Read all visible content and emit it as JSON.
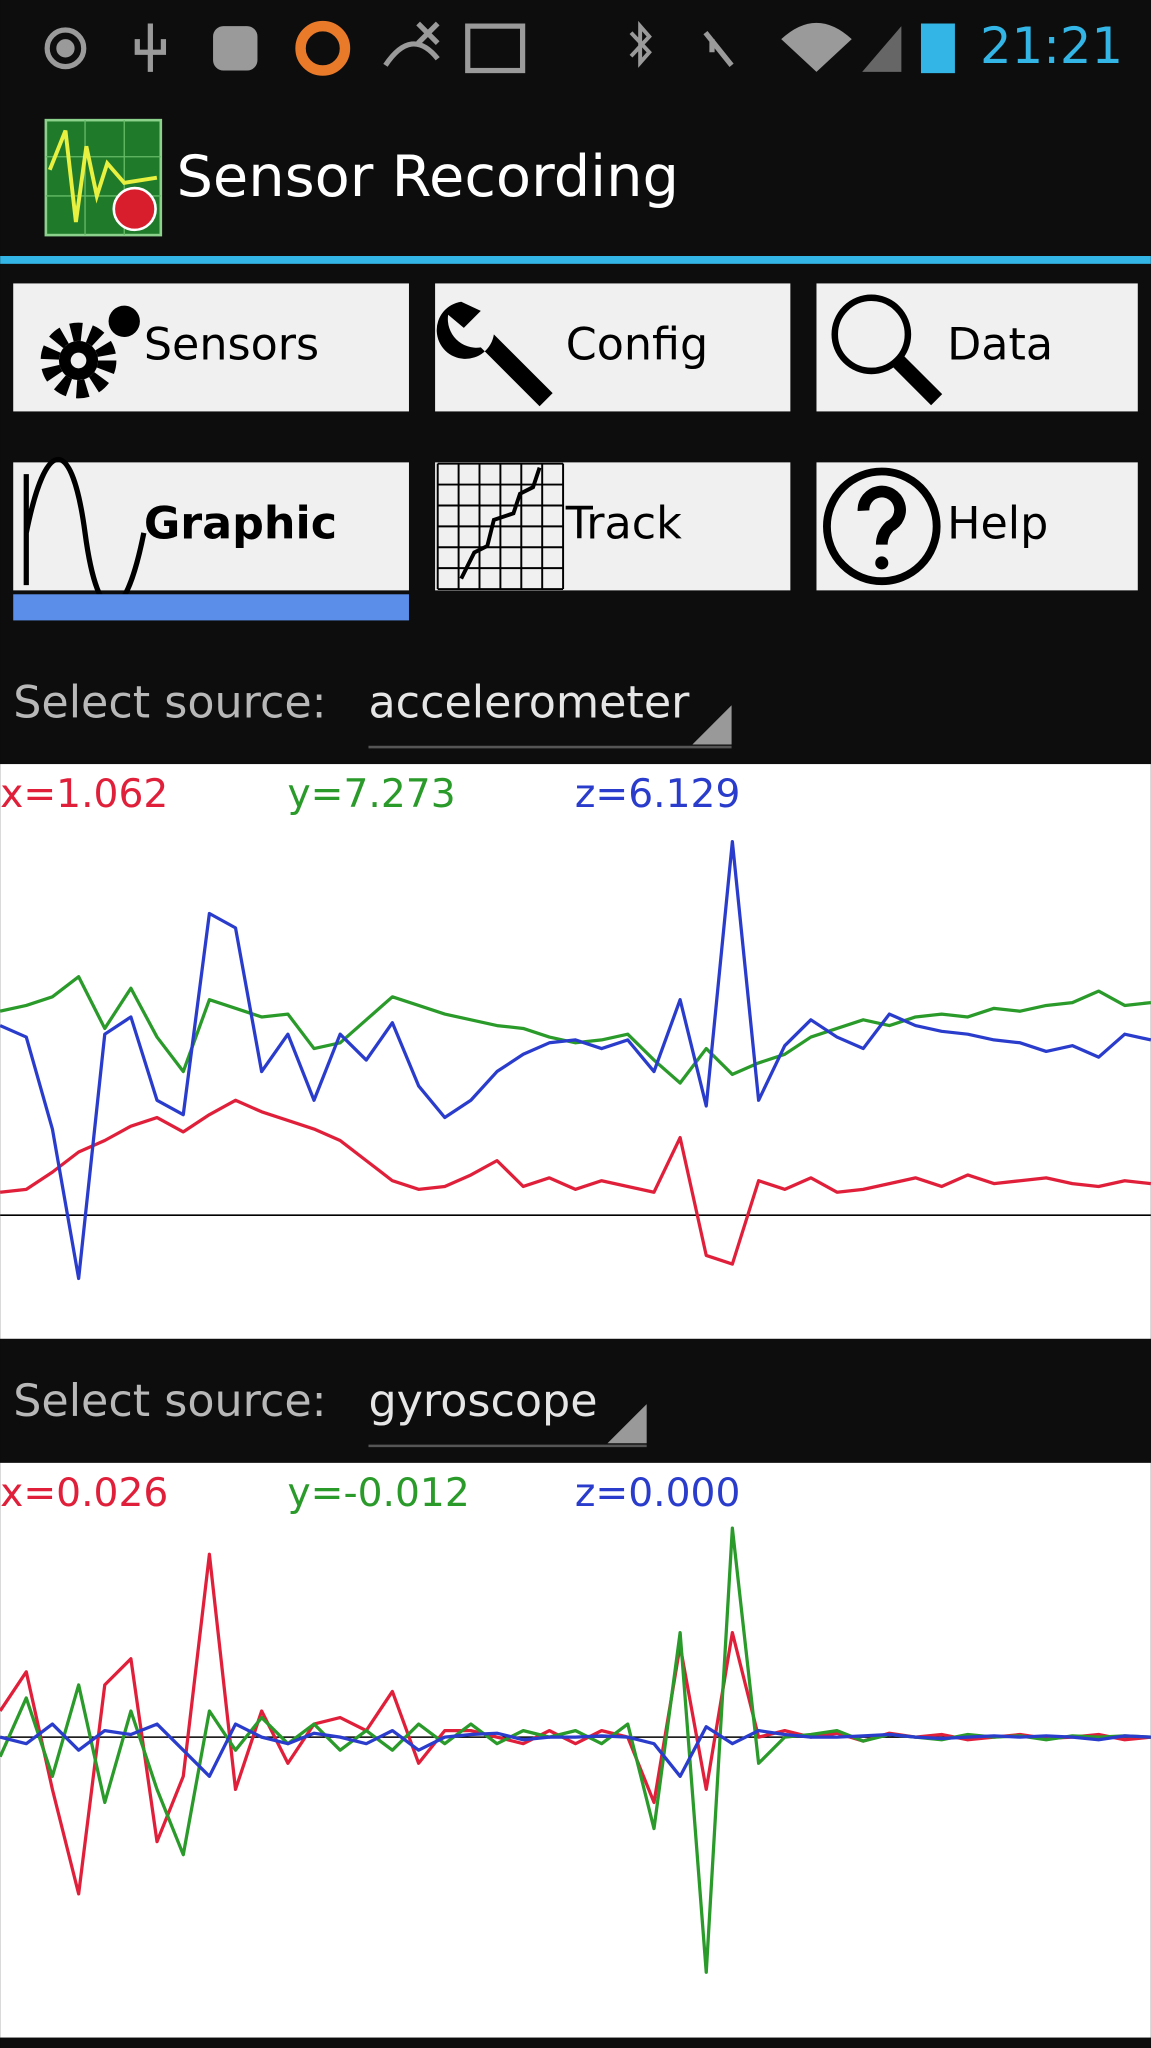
{
  "status_bar": {
    "time": "21:21"
  },
  "app_bar": {
    "title": "Sensor Recording"
  },
  "buttons": [
    {
      "label": "Sensors",
      "selected": false
    },
    {
      "label": "Config",
      "selected": false
    },
    {
      "label": "Data",
      "selected": false
    },
    {
      "label": "Graphic",
      "selected": true
    },
    {
      "label": "Track",
      "selected": false
    },
    {
      "label": "Help",
      "selected": false
    }
  ],
  "sources": [
    {
      "prompt": "Select source:",
      "value": "accelerometer"
    },
    {
      "prompt": "Select source:",
      "value": "gyroscope"
    }
  ],
  "chart_data": [
    {
      "type": "line",
      "readouts": [
        "x=1.062",
        "y=7.273",
        "z=6.129"
      ],
      "ylim": [
        -4.3,
        15.7
      ],
      "series": [
        {
          "color": "#e0203a",
          "values": [
            0.8,
            0.9,
            1.5,
            2.2,
            2.6,
            3.1,
            3.4,
            2.9,
            3.5,
            4.0,
            3.6,
            3.3,
            3.0,
            2.6,
            1.9,
            1.2,
            0.9,
            1.0,
            1.4,
            1.9,
            1.0,
            1.3,
            0.9,
            1.2,
            1.0,
            0.8,
            2.7,
            -1.4,
            -1.7,
            1.2,
            0.9,
            1.3,
            0.8,
            0.9,
            1.1,
            1.3,
            1.0,
            1.4,
            1.1,
            1.2,
            1.3,
            1.1,
            1.0,
            1.2,
            1.1
          ]
        },
        {
          "color": "#2a9a2a",
          "values": [
            7.1,
            7.3,
            7.6,
            8.3,
            6.5,
            7.9,
            6.2,
            5.0,
            7.5,
            7.2,
            6.9,
            7.0,
            5.8,
            6.0,
            6.8,
            7.6,
            7.3,
            7.0,
            6.8,
            6.6,
            6.5,
            6.2,
            6.0,
            6.1,
            6.3,
            5.4,
            4.6,
            5.8,
            4.9,
            5.3,
            5.6,
            6.2,
            6.5,
            6.8,
            6.6,
            6.9,
            7.0,
            6.9,
            7.2,
            7.1,
            7.3,
            7.4,
            7.8,
            7.3,
            7.4
          ]
        },
        {
          "color": "#2a3ccc",
          "values": [
            6.6,
            6.2,
            3.0,
            -2.2,
            6.3,
            6.9,
            4.0,
            3.5,
            10.5,
            10.0,
            5.0,
            6.3,
            4.0,
            6.3,
            5.4,
            6.7,
            4.5,
            3.4,
            4.0,
            5.0,
            5.6,
            6.0,
            6.1,
            5.8,
            6.1,
            5.0,
            7.5,
            3.8,
            13.0,
            4.0,
            5.9,
            6.8,
            6.2,
            5.8,
            7.0,
            6.6,
            6.4,
            6.3,
            6.1,
            6.0,
            5.7,
            5.9,
            5.5,
            6.3,
            6.1
          ]
        }
      ]
    },
    {
      "type": "line",
      "readouts": [
        "x=0.026",
        "y=-0.012",
        "z=0.000"
      ],
      "ylim": [
        -2.3,
        2.1
      ],
      "series": [
        {
          "color": "#e0203a",
          "values": [
            0.2,
            0.5,
            -0.4,
            -1.2,
            0.4,
            0.6,
            -0.8,
            -0.3,
            1.4,
            -0.4,
            0.2,
            -0.2,
            0.1,
            0.15,
            0.05,
            0.35,
            -0.2,
            0.05,
            0.05,
            0,
            -0.05,
            0.05,
            -0.05,
            0.05,
            0,
            -0.5,
            0.7,
            -0.4,
            0.8,
            0,
            0.05,
            0,
            0.03,
            -0.03,
            0.03,
            0,
            0.02,
            -0.02,
            0,
            0.02,
            -0.01,
            0,
            0.02,
            -0.02,
            0
          ]
        },
        {
          "color": "#2a9a2a",
          "values": [
            -0.15,
            0.3,
            -0.3,
            0.4,
            -0.5,
            0.2,
            -0.4,
            -0.9,
            0.2,
            -0.1,
            0.15,
            -0.05,
            0.1,
            -0.1,
            0.05,
            -0.1,
            0.1,
            -0.05,
            0.1,
            -0.05,
            0.05,
            0,
            0.05,
            -0.05,
            0.1,
            -0.7,
            0.8,
            -1.8,
            1.6,
            -0.2,
            0,
            0.02,
            0.05,
            -0.03,
            0.02,
            0,
            -0.02,
            0.02,
            0,
            0.01,
            -0.02,
            0.01,
            0,
            0.01,
            0
          ]
        },
        {
          "color": "#2a3ccc",
          "values": [
            0,
            -0.05,
            0.1,
            -0.1,
            0.05,
            0.02,
            0.1,
            -0.1,
            -0.3,
            0.1,
            0,
            -0.05,
            0.03,
            0,
            -0.05,
            0.05,
            -0.1,
            0,
            0.02,
            0.03,
            -0.02,
            0,
            0,
            0.01,
            0,
            -0.05,
            -0.3,
            0.08,
            -0.05,
            0.05,
            0.02,
            0,
            0,
            0.01,
            0.02,
            0,
            -0.01,
            0,
            0.01,
            0,
            0.01,
            0,
            -0.02,
            0.01,
            0
          ]
        }
      ]
    }
  ]
}
